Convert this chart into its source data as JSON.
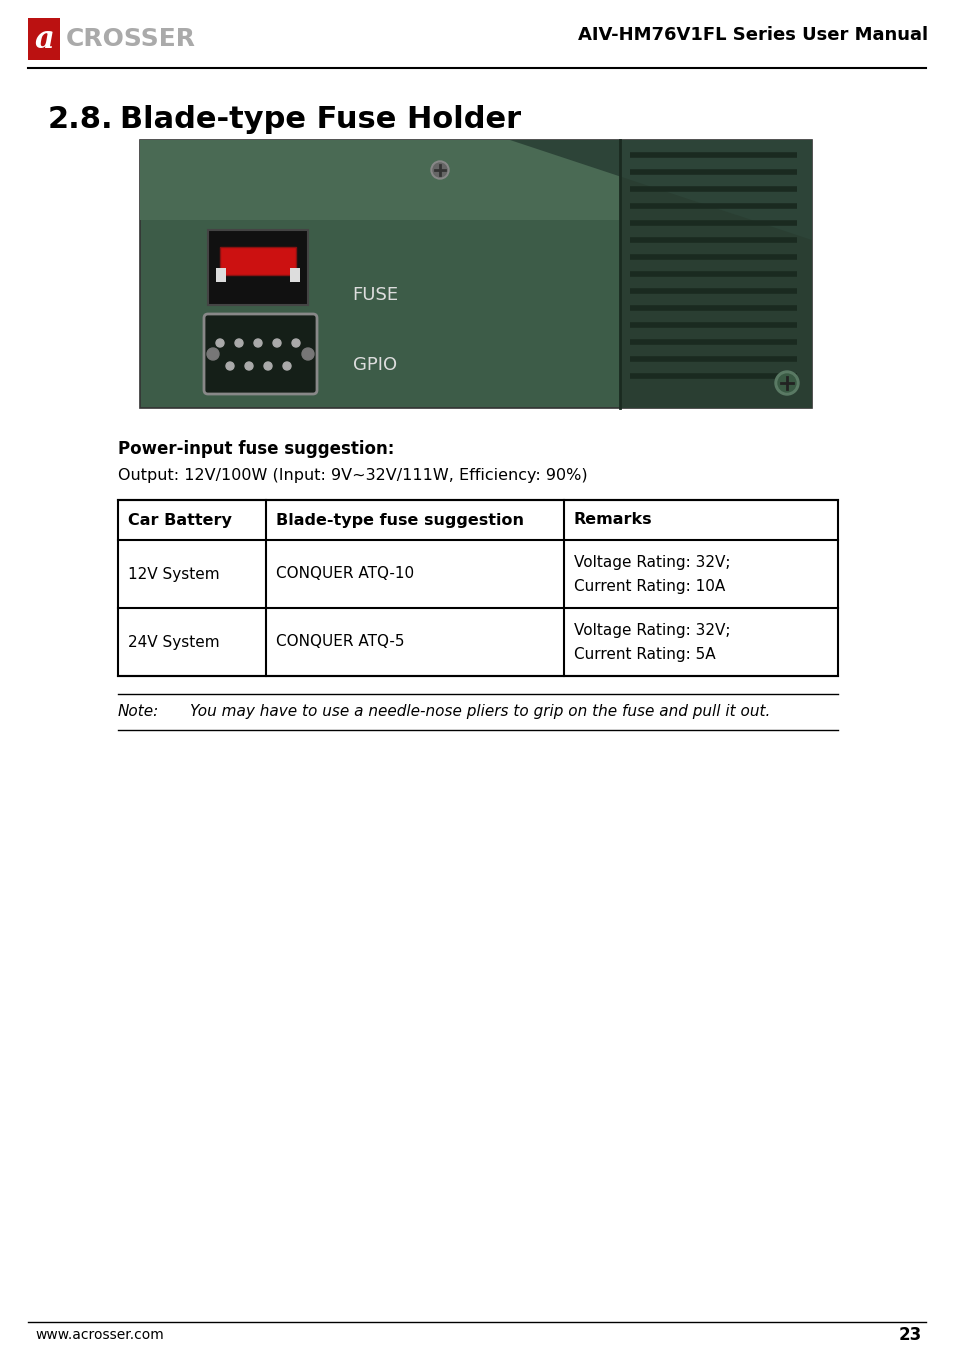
{
  "page_title": "AIV-HM76V1FL Series User Manual",
  "section_number": "2.8.",
  "section_title": "Blade-type Fuse Holder",
  "fuse_subtitle": "Power-input fuse suggestion:",
  "fuse_output": "Output: 12V/100W (Input: 9V~32V/111W, Efficiency: 90%)",
  "table_headers": [
    "Car Battery",
    "Blade-type fuse suggestion",
    "Remarks"
  ],
  "table_rows": [
    [
      "12V System",
      "CONQUER ATQ-10",
      "Voltage Rating: 32V;\nCurrent Rating: 10A"
    ],
    [
      "24V System",
      "CONQUER ATQ-5",
      "Voltage Rating: 32V;\nCurrent Rating: 5A"
    ]
  ],
  "note_label": "Note:",
  "note_text": "You may have to use a needle-nose pliers to grip on the fuse and pull it out.",
  "footer_text": "www.acrosser.com",
  "page_number": "23",
  "bg_color": "#ffffff",
  "img_bg": "#3a5a46",
  "img_bg2": "#2d4a38",
  "img_dark": "#1e3328",
  "img_vent": "#263c2e",
  "img_top": "#4a6a56",
  "fuse_red": "#cc2222",
  "connector_dark": "#1a2820",
  "screw_color": "#888888",
  "header_line_color": "#000000",
  "table_border": "#000000",
  "text_color": "#000000"
}
